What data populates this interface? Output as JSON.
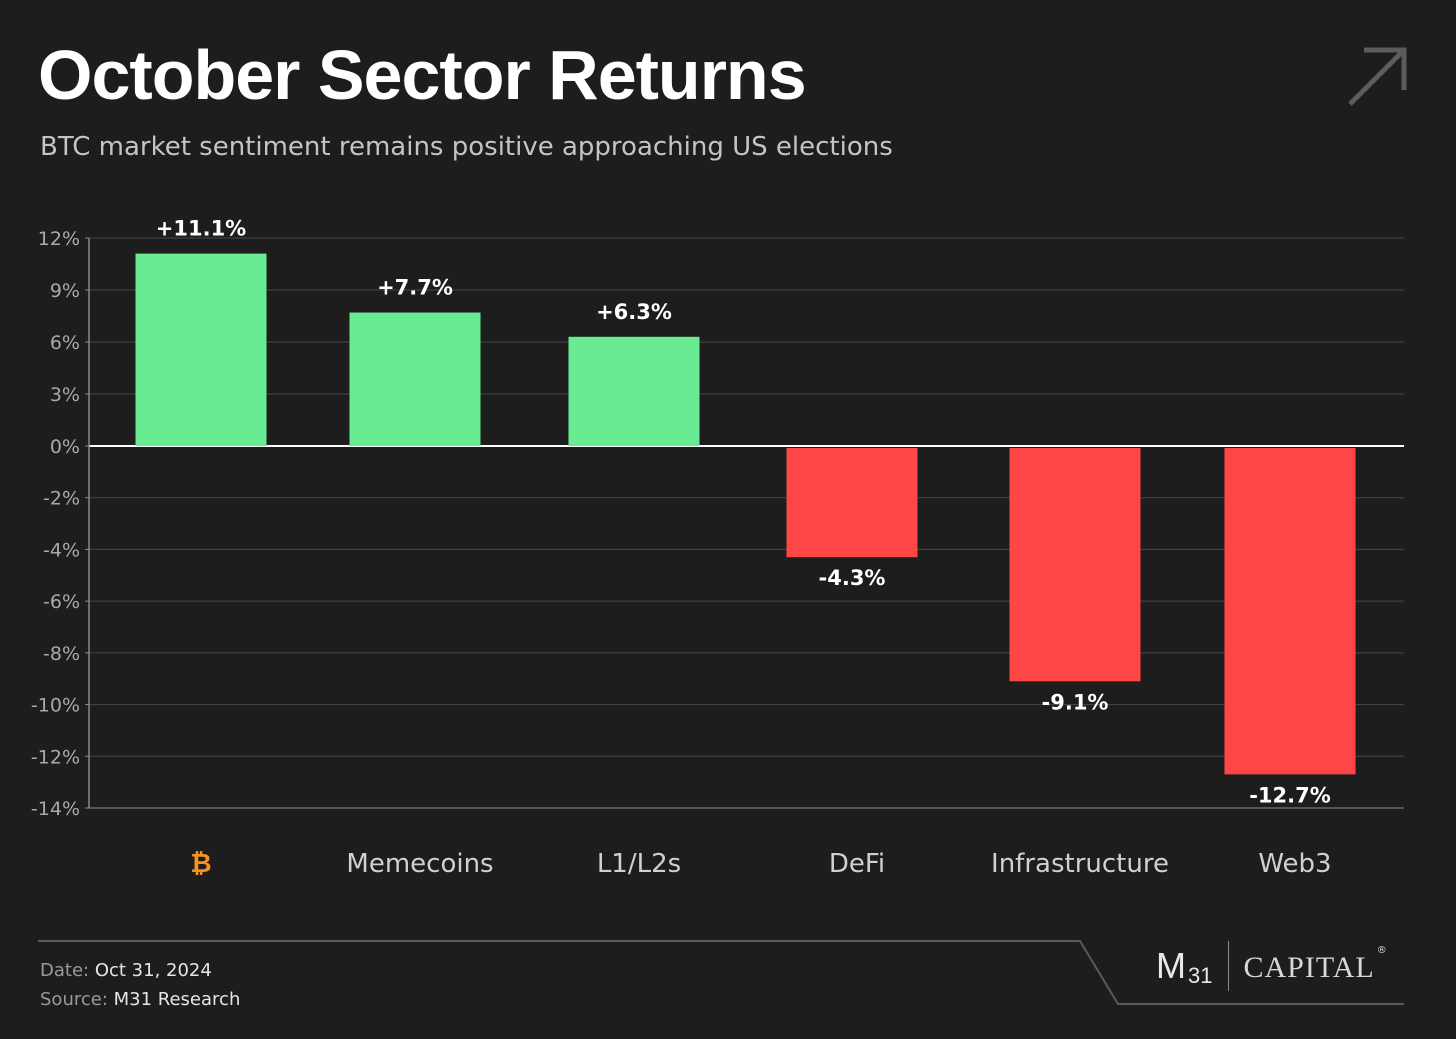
{
  "header": {
    "title": "October Sector Returns",
    "subtitle": "BTC market sentiment remains positive approaching US elections"
  },
  "footer": {
    "date_label": "Date:",
    "date_value": "Oct 31, 2024",
    "source_label": "Source:",
    "source_value": "M31 Research",
    "logo_m": "M",
    "logo_sub": "31",
    "logo_capital": "CAPITAL",
    "logo_reg": "®"
  },
  "icons": {
    "corner": "arrow-up-right-icon",
    "btc_category": "bitcoin-icon"
  },
  "colors": {
    "background": "#1d1d1e",
    "positive": "#69eb94",
    "negative": "#ff4646",
    "bitcoin": "#f7931a"
  },
  "chart_data": {
    "type": "bar",
    "categories": [
      "₿",
      "Memecoins",
      "L1/L2s",
      "DeFi",
      "Infrastructure",
      "Web3"
    ],
    "values": [
      11.1,
      7.7,
      6.3,
      -4.3,
      -9.1,
      -12.7
    ],
    "data_labels": [
      "+11.1%",
      "+7.7%",
      "+6.3%",
      "-4.3%",
      "-9.1%",
      "-12.7%"
    ],
    "ylim": [
      -14,
      12
    ],
    "yticks_positive": [
      12,
      9,
      6,
      3,
      0
    ],
    "yticks_negative": [
      -2,
      -4,
      -6,
      -8,
      -10,
      -12,
      -14
    ],
    "ytick_labels_positive": [
      "12%",
      "9%",
      "6%",
      "3%",
      "0%"
    ],
    "ytick_labels_negative": [
      "-2%",
      "-4%",
      "-6%",
      "-8%",
      "-10%",
      "-12%",
      "-14%"
    ],
    "grid": true,
    "xlabel": "",
    "ylabel": ""
  }
}
